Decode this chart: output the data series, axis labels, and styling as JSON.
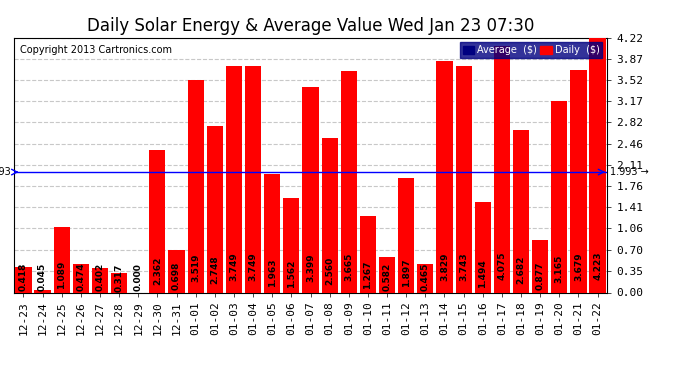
{
  "title": "Daily Solar Energy & Average Value Wed Jan 23 07:30",
  "copyright": "Copyright 2013 Cartronics.com",
  "categories": [
    "12-23",
    "12-24",
    "12-25",
    "12-26",
    "12-27",
    "12-28",
    "12-29",
    "12-30",
    "12-31",
    "01-01",
    "01-02",
    "01-03",
    "01-04",
    "01-05",
    "01-06",
    "01-07",
    "01-08",
    "01-09",
    "01-10",
    "01-11",
    "01-12",
    "01-13",
    "01-14",
    "01-15",
    "01-16",
    "01-17",
    "01-18",
    "01-19",
    "01-20",
    "01-21",
    "01-22"
  ],
  "values": [
    0.418,
    0.045,
    1.089,
    0.474,
    0.402,
    0.317,
    0.0,
    2.362,
    0.698,
    3.519,
    2.748,
    3.749,
    3.749,
    1.963,
    1.562,
    3.399,
    2.56,
    3.665,
    1.267,
    0.582,
    1.897,
    0.465,
    3.829,
    3.743,
    1.494,
    4.075,
    2.682,
    0.877,
    3.165,
    3.679,
    4.223
  ],
  "average_value": 1.993,
  "bar_color": "#FF0000",
  "average_line_color": "#0000FF",
  "background_color": "#FFFFFF",
  "plot_bg_color": "#FFFFFF",
  "grid_color": "#C8C8C8",
  "ylim": [
    0.0,
    4.22
  ],
  "yticks": [
    0.0,
    0.35,
    0.7,
    1.06,
    1.41,
    1.76,
    2.11,
    2.46,
    2.82,
    3.17,
    3.52,
    3.87,
    4.22
  ],
  "legend_avg_color": "#000080",
  "legend_daily_color": "#FF0000",
  "title_fontsize": 12,
  "tick_fontsize": 8,
  "label_fontsize": 6.5
}
